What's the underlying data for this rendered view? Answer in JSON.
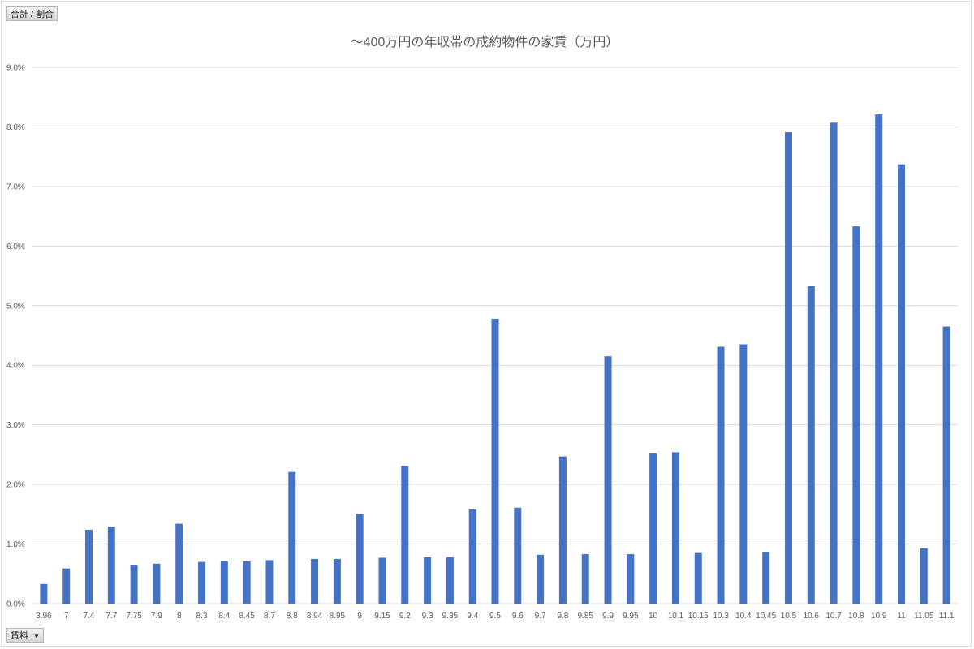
{
  "value_field": {
    "label": "合計 / 割合"
  },
  "axis_field": {
    "label": "賃料",
    "icon": "dropdown-arrow-icon"
  },
  "colors": {
    "bar": "#4472c4",
    "grid": "#d9d9d9",
    "text": "#595959"
  },
  "chart_data": {
    "type": "bar",
    "title": "〜400万円の年収帯の成約物件の家賃（万円）",
    "xlabel": "",
    "ylabel": "",
    "ylim": [
      0,
      9
    ],
    "grid": true,
    "legend": "none",
    "y_ticks": [
      "0.0%",
      "1.0%",
      "2.0%",
      "3.0%",
      "4.0%",
      "5.0%",
      "6.0%",
      "7.0%",
      "8.0%",
      "9.0%"
    ],
    "categories": [
      "3.96",
      "7",
      "7.4",
      "7.7",
      "7.75",
      "7.9",
      "8",
      "8.3",
      "8.4",
      "8.45",
      "8.7",
      "8.8",
      "8.94",
      "8.95",
      "9",
      "9.15",
      "9.2",
      "9.3",
      "9.35",
      "9.4",
      "9.5",
      "9.6",
      "9.7",
      "9.8",
      "9.85",
      "9.9",
      "9.95",
      "10",
      "10.1",
      "10.15",
      "10.3",
      "10.4",
      "10.45",
      "10.5",
      "10.6",
      "10.7",
      "10.8",
      "10.9",
      "11",
      "11.05",
      "11.1"
    ],
    "values": [
      0.33,
      0.59,
      1.24,
      1.29,
      0.65,
      0.67,
      1.34,
      0.7,
      0.71,
      0.71,
      0.73,
      2.21,
      0.75,
      0.75,
      1.51,
      0.77,
      2.31,
      0.78,
      0.78,
      1.58,
      4.78,
      1.61,
      0.82,
      2.47,
      0.83,
      4.15,
      0.83,
      2.52,
      2.54,
      0.85,
      4.31,
      4.35,
      0.87,
      7.91,
      5.33,
      8.07,
      6.33,
      8.21,
      7.37,
      0.93,
      4.65
    ]
  }
}
